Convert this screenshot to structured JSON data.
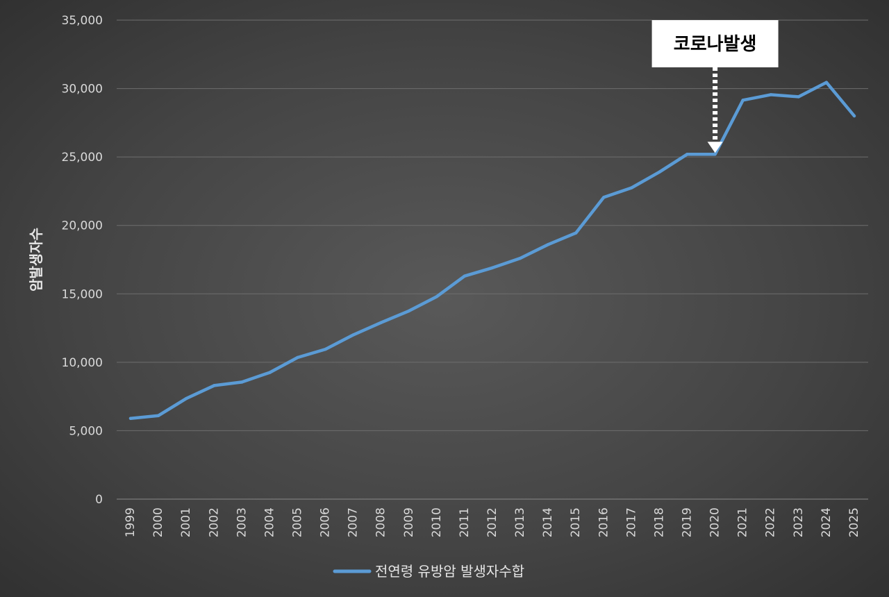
{
  "chart_data": {
    "type": "line",
    "title": "",
    "xlabel": "",
    "ylabel": "암발생자수",
    "ylim": [
      0,
      35000
    ],
    "yticks": [
      0,
      5000,
      10000,
      15000,
      20000,
      25000,
      30000,
      35000
    ],
    "ytick_labels": [
      "0",
      "5,000",
      "10,000",
      "15,000",
      "20,000",
      "25,000",
      "30,000",
      "35,000"
    ],
    "categories": [
      "1999",
      "2000",
      "2001",
      "2002",
      "2003",
      "2004",
      "2005",
      "2006",
      "2007",
      "2008",
      "2009",
      "2010",
      "2011",
      "2012",
      "2013",
      "2014",
      "2015",
      "2016",
      "2017",
      "2018",
      "2019",
      "2020",
      "2021",
      "2022",
      "2023",
      "2024",
      "2025"
    ],
    "series": [
      {
        "name": "전연령 유방암 발생자수합",
        "color": "#5b9bd5",
        "values": [
          5900,
          6100,
          7350,
          8300,
          8550,
          9250,
          10350,
          10950,
          12000,
          12900,
          13750,
          14800,
          16300,
          16900,
          17600,
          18600,
          19450,
          22050,
          22750,
          23900,
          25200,
          25200,
          29150,
          29550,
          29400,
          30450,
          28000
        ]
      }
    ],
    "grid": true,
    "legend": "bottom",
    "annotations": [
      {
        "text": "코로나발생",
        "target_category": "2020",
        "target_value": 25200,
        "style": "white box with dotted arrow pointing down"
      }
    ]
  }
}
